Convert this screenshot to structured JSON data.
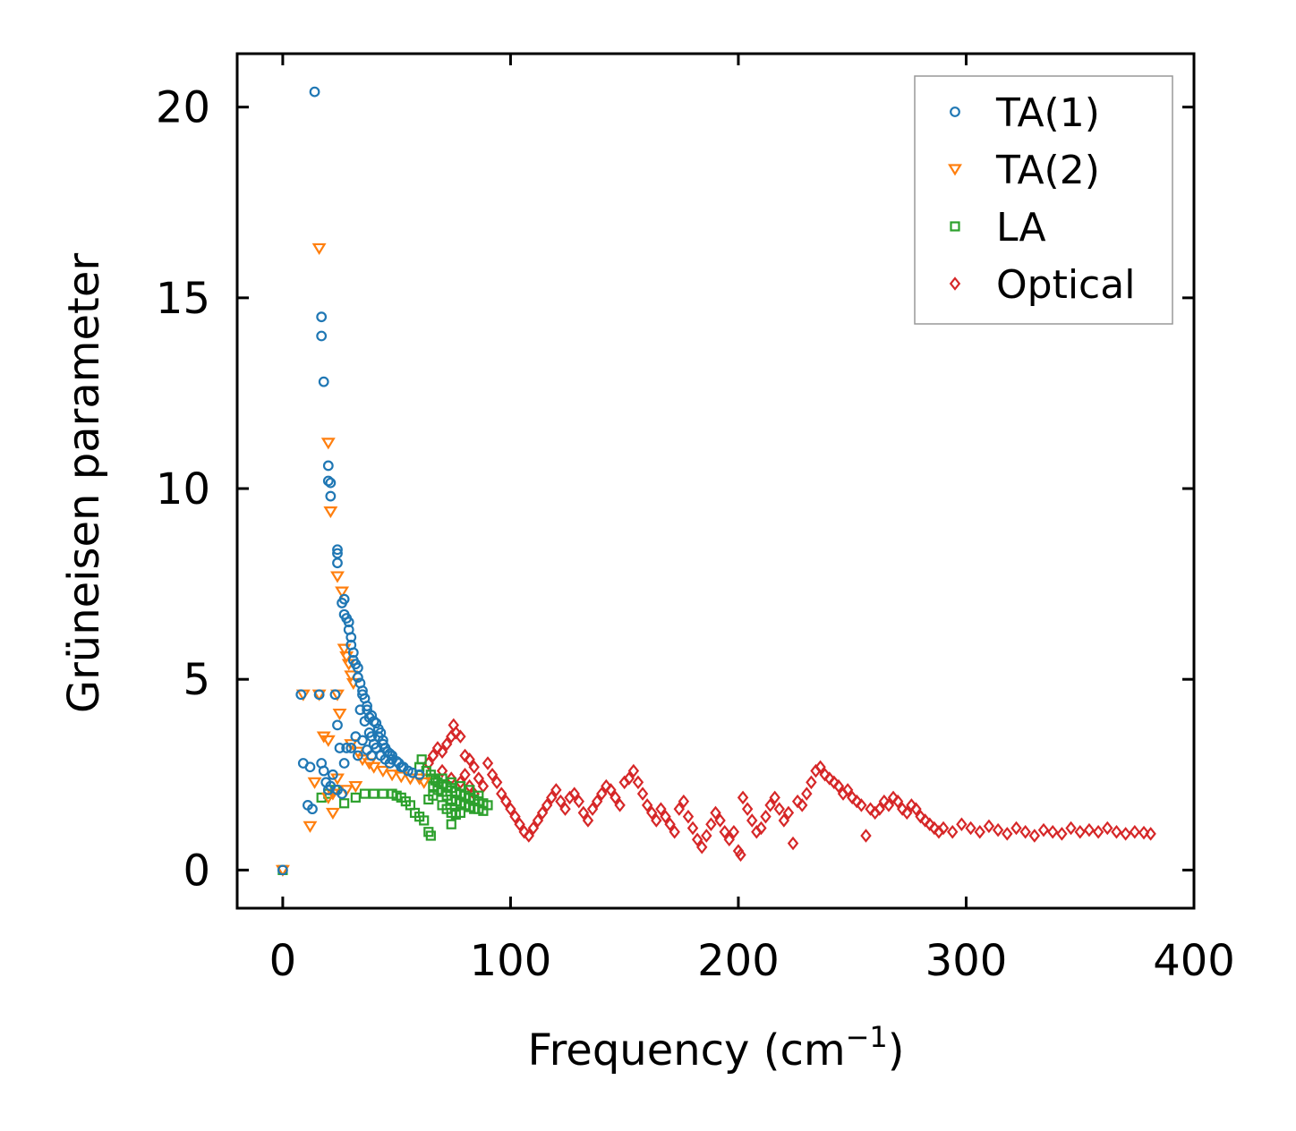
{
  "chart_data": {
    "type": "scatter",
    "title": "",
    "xlabel": "Frequency (cm",
    "xlabel_sup": "−1",
    "xlabel_end": ")",
    "ylabel": "Grüneisen parameter",
    "xlim": [
      -20,
      400
    ],
    "ylim": [
      -1,
      21.4
    ],
    "xticks": [
      0,
      100,
      200,
      300,
      400
    ],
    "yticks": [
      0,
      5,
      10,
      15,
      20
    ],
    "grid": false,
    "legend_position": "top-right",
    "series": [
      {
        "name": "TA(1)",
        "marker": "circle",
        "color": "#1f77b4",
        "points": [
          [
            0,
            0
          ],
          [
            14,
            20.4
          ],
          [
            17,
            14.5
          ],
          [
            17,
            14
          ],
          [
            18,
            12.8
          ],
          [
            20,
            10.6
          ],
          [
            20,
            10.2
          ],
          [
            21,
            10.15
          ],
          [
            21,
            9.8
          ],
          [
            24,
            8.4
          ],
          [
            24,
            8.3
          ],
          [
            24,
            8.05
          ],
          [
            26,
            7
          ],
          [
            27,
            7.1
          ],
          [
            27,
            6.7
          ],
          [
            28,
            6.6
          ],
          [
            29,
            6.5
          ],
          [
            29,
            6.3
          ],
          [
            30,
            6.1
          ],
          [
            30,
            5.9
          ],
          [
            31,
            5.7
          ],
          [
            31,
            5.5
          ],
          [
            32,
            5.4
          ],
          [
            33,
            5.3
          ],
          [
            33,
            5.05
          ],
          [
            34,
            4.9
          ],
          [
            35,
            4.7
          ],
          [
            35,
            4.6
          ],
          [
            36,
            4.5
          ],
          [
            37,
            4.3
          ],
          [
            37,
            4.2
          ],
          [
            38,
            4.0
          ],
          [
            39,
            4.05
          ],
          [
            40,
            3.9
          ],
          [
            41,
            3.85
          ],
          [
            42,
            3.7
          ],
          [
            42,
            3.5
          ],
          [
            43,
            3.6
          ],
          [
            44,
            3.4
          ],
          [
            44,
            3.3
          ],
          [
            45,
            3.2
          ],
          [
            46,
            3.1
          ],
          [
            47,
            3.05
          ],
          [
            48,
            3.0
          ],
          [
            48,
            2.9
          ],
          [
            50,
            2.85
          ],
          [
            51,
            2.8
          ],
          [
            52,
            2.7
          ],
          [
            53,
            2.7
          ],
          [
            55,
            2.6
          ],
          [
            57,
            2.55
          ],
          [
            60,
            2.5
          ],
          [
            34,
            4.2
          ],
          [
            36,
            3.9
          ],
          [
            38,
            3.6
          ],
          [
            39,
            3.5
          ],
          [
            40,
            3.3
          ],
          [
            41,
            3.2
          ],
          [
            43,
            3.0
          ],
          [
            45,
            2.9
          ],
          [
            47,
            2.8
          ],
          [
            35,
            3.4
          ],
          [
            37,
            3.15
          ],
          [
            39,
            3.0
          ],
          [
            32,
            3.5
          ],
          [
            33,
            3.0
          ],
          [
            30,
            3.2
          ],
          [
            28,
            3.2
          ],
          [
            27,
            2.8
          ],
          [
            25,
            3.2
          ],
          [
            24,
            3.8
          ],
          [
            23,
            4.6
          ],
          [
            8,
            4.6
          ],
          [
            16,
            4.6
          ],
          [
            9,
            2.8
          ],
          [
            12,
            2.7
          ],
          [
            17,
            2.8
          ],
          [
            18,
            2.6
          ],
          [
            19,
            2.3
          ],
          [
            20,
            2.1
          ],
          [
            21,
            2.2
          ],
          [
            22,
            2.5
          ],
          [
            24,
            2.1
          ],
          [
            26,
            2.0
          ],
          [
            11,
            1.7
          ],
          [
            13,
            1.6
          ]
        ]
      },
      {
        "name": "TA(2)",
        "marker": "triangle-down",
        "color": "#ff7f0e",
        "points": [
          [
            0,
            0
          ],
          [
            16,
            16.3
          ],
          [
            20,
            11.2
          ],
          [
            21,
            9.4
          ],
          [
            24,
            7.7
          ],
          [
            26,
            7.3
          ],
          [
            27,
            5.8
          ],
          [
            28,
            5.6
          ],
          [
            29,
            5.4
          ],
          [
            30,
            5.1
          ],
          [
            31,
            4.9
          ],
          [
            25,
            4.1
          ],
          [
            24,
            4.6
          ],
          [
            16,
            4.6
          ],
          [
            9,
            4.6
          ],
          [
            18,
            3.5
          ],
          [
            20,
            3.4
          ],
          [
            30,
            3.3
          ],
          [
            33,
            3.1
          ],
          [
            35,
            2.9
          ],
          [
            38,
            2.8
          ],
          [
            40,
            2.7
          ],
          [
            44,
            2.6
          ],
          [
            48,
            2.5
          ],
          [
            52,
            2.45
          ],
          [
            56,
            2.4
          ],
          [
            60,
            2.4
          ],
          [
            62,
            2.3
          ],
          [
            24,
            2.4
          ],
          [
            22,
            2.0
          ],
          [
            20,
            1.9
          ],
          [
            28,
            2.1
          ],
          [
            32,
            2.2
          ],
          [
            22,
            1.5
          ],
          [
            12,
            1.15
          ],
          [
            14,
            2.3
          ]
        ]
      },
      {
        "name": "LA",
        "marker": "square",
        "color": "#2ca02c",
        "points": [
          [
            0,
            0
          ],
          [
            17,
            1.9
          ],
          [
            20,
            2.0
          ],
          [
            23,
            2.1
          ],
          [
            27,
            1.75
          ],
          [
            32,
            1.9
          ],
          [
            36,
            2.0
          ],
          [
            40,
            2.0
          ],
          [
            44,
            2.0
          ],
          [
            48,
            2.0
          ],
          [
            50,
            1.95
          ],
          [
            52,
            1.9
          ],
          [
            54,
            1.8
          ],
          [
            56,
            1.7
          ],
          [
            58,
            1.5
          ],
          [
            60,
            1.4
          ],
          [
            62,
            1.3
          ],
          [
            64,
            1.0
          ],
          [
            65,
            0.9
          ],
          [
            60,
            2.7
          ],
          [
            61,
            2.9
          ],
          [
            63,
            2.6
          ],
          [
            65,
            2.5
          ],
          [
            66,
            2.4
          ],
          [
            67,
            2.35
          ],
          [
            68,
            2.3
          ],
          [
            70,
            2.25
          ],
          [
            72,
            2.2
          ],
          [
            74,
            2.15
          ],
          [
            76,
            2.05
          ],
          [
            78,
            2.0
          ],
          [
            80,
            1.95
          ],
          [
            82,
            1.9
          ],
          [
            84,
            1.85
          ],
          [
            86,
            1.8
          ],
          [
            88,
            1.75
          ],
          [
            90,
            1.7
          ],
          [
            66,
            2.2
          ],
          [
            68,
            2.1
          ],
          [
            70,
            2.05
          ],
          [
            72,
            1.95
          ],
          [
            74,
            1.85
          ],
          [
            76,
            1.8
          ],
          [
            78,
            1.75
          ],
          [
            80,
            1.7
          ],
          [
            82,
            1.65
          ],
          [
            84,
            1.6
          ],
          [
            86,
            1.6
          ],
          [
            88,
            1.55
          ],
          [
            70,
            1.7
          ],
          [
            72,
            1.6
          ],
          [
            74,
            1.5
          ],
          [
            76,
            1.45
          ],
          [
            78,
            1.5
          ],
          [
            74,
            1.2
          ],
          [
            70,
            2.4
          ],
          [
            74,
            2.3
          ],
          [
            78,
            2.2
          ],
          [
            82,
            2.1
          ],
          [
            86,
            1.95
          ],
          [
            66,
            1.95
          ],
          [
            64,
            1.85
          ]
        ]
      },
      {
        "name": "Optical",
        "marker": "diamond",
        "color": "#d62728",
        "points": [
          [
            64,
            2.8
          ],
          [
            66,
            3.0
          ],
          [
            68,
            3.2
          ],
          [
            70,
            3.1
          ],
          [
            72,
            3.3
          ],
          [
            74,
            3.5
          ],
          [
            75,
            3.8
          ],
          [
            76,
            3.6
          ],
          [
            78,
            3.5
          ],
          [
            80,
            3.0
          ],
          [
            82,
            2.9
          ],
          [
            84,
            2.7
          ],
          [
            70,
            2.6
          ],
          [
            74,
            2.4
          ],
          [
            78,
            2.3
          ],
          [
            80,
            2.5
          ],
          [
            82,
            2.2
          ],
          [
            84,
            2.0
          ],
          [
            86,
            2.4
          ],
          [
            88,
            2.2
          ],
          [
            90,
            2.8
          ],
          [
            92,
            2.5
          ],
          [
            94,
            2.3
          ],
          [
            96,
            2.0
          ],
          [
            98,
            1.8
          ],
          [
            100,
            1.6
          ],
          [
            102,
            1.4
          ],
          [
            104,
            1.2
          ],
          [
            106,
            1.0
          ],
          [
            108,
            0.9
          ],
          [
            110,
            1.1
          ],
          [
            112,
            1.3
          ],
          [
            114,
            1.5
          ],
          [
            116,
            1.7
          ],
          [
            118,
            1.9
          ],
          [
            120,
            2.1
          ],
          [
            122,
            1.8
          ],
          [
            124,
            1.6
          ],
          [
            126,
            1.9
          ],
          [
            128,
            2.0
          ],
          [
            130,
            1.8
          ],
          [
            132,
            1.5
          ],
          [
            134,
            1.3
          ],
          [
            136,
            1.6
          ],
          [
            138,
            1.8
          ],
          [
            140,
            2.0
          ],
          [
            142,
            2.2
          ],
          [
            144,
            2.1
          ],
          [
            146,
            1.9
          ],
          [
            148,
            1.7
          ],
          [
            150,
            2.3
          ],
          [
            152,
            2.4
          ],
          [
            154,
            2.6
          ],
          [
            156,
            2.3
          ],
          [
            158,
            2.0
          ],
          [
            160,
            1.7
          ],
          [
            162,
            1.5
          ],
          [
            164,
            1.3
          ],
          [
            166,
            1.6
          ],
          [
            168,
            1.4
          ],
          [
            170,
            1.2
          ],
          [
            172,
            1.0
          ],
          [
            174,
            1.6
          ],
          [
            176,
            1.8
          ],
          [
            178,
            1.4
          ],
          [
            180,
            1.1
          ],
          [
            182,
            0.8
          ],
          [
            184,
            0.6
          ],
          [
            186,
            0.9
          ],
          [
            188,
            1.2
          ],
          [
            190,
            1.5
          ],
          [
            192,
            1.3
          ],
          [
            194,
            1.0
          ],
          [
            196,
            0.8
          ],
          [
            198,
            1.0
          ],
          [
            200,
            0.5
          ],
          [
            201,
            0.4
          ],
          [
            202,
            1.9
          ],
          [
            204,
            1.6
          ],
          [
            206,
            1.3
          ],
          [
            208,
            1.0
          ],
          [
            210,
            1.1
          ],
          [
            212,
            1.4
          ],
          [
            214,
            1.7
          ],
          [
            216,
            1.9
          ],
          [
            218,
            1.6
          ],
          [
            220,
            1.3
          ],
          [
            222,
            1.5
          ],
          [
            224,
            0.7
          ],
          [
            226,
            1.8
          ],
          [
            228,
            1.7
          ],
          [
            230,
            2.0
          ],
          [
            232,
            2.3
          ],
          [
            234,
            2.6
          ],
          [
            236,
            2.7
          ],
          [
            238,
            2.5
          ],
          [
            240,
            2.4
          ],
          [
            242,
            2.3
          ],
          [
            244,
            2.2
          ],
          [
            246,
            2.0
          ],
          [
            248,
            2.1
          ],
          [
            250,
            1.9
          ],
          [
            252,
            1.8
          ],
          [
            254,
            1.7
          ],
          [
            256,
            0.9
          ],
          [
            258,
            1.6
          ],
          [
            260,
            1.5
          ],
          [
            262,
            1.6
          ],
          [
            264,
            1.8
          ],
          [
            266,
            1.7
          ],
          [
            268,
            1.9
          ],
          [
            270,
            1.8
          ],
          [
            272,
            1.6
          ],
          [
            274,
            1.5
          ],
          [
            276,
            1.7
          ],
          [
            278,
            1.6
          ],
          [
            280,
            1.4
          ],
          [
            282,
            1.3
          ],
          [
            284,
            1.2
          ],
          [
            286,
            1.1
          ],
          [
            288,
            1.0
          ],
          [
            290,
            1.1
          ],
          [
            294,
            1.0
          ],
          [
            298,
            1.2
          ],
          [
            302,
            1.1
          ],
          [
            306,
            1.0
          ],
          [
            310,
            1.15
          ],
          [
            314,
            1.05
          ],
          [
            318,
            0.95
          ],
          [
            322,
            1.1
          ],
          [
            326,
            1.0
          ],
          [
            330,
            0.9
          ],
          [
            334,
            1.05
          ],
          [
            338,
            1.0
          ],
          [
            342,
            0.95
          ],
          [
            346,
            1.1
          ],
          [
            350,
            1.0
          ],
          [
            354,
            1.05
          ],
          [
            358,
            1.0
          ],
          [
            362,
            1.1
          ],
          [
            366,
            1.0
          ],
          [
            370,
            0.95
          ],
          [
            374,
            1.0
          ],
          [
            378,
            0.98
          ],
          [
            381,
            0.95
          ]
        ]
      }
    ]
  }
}
